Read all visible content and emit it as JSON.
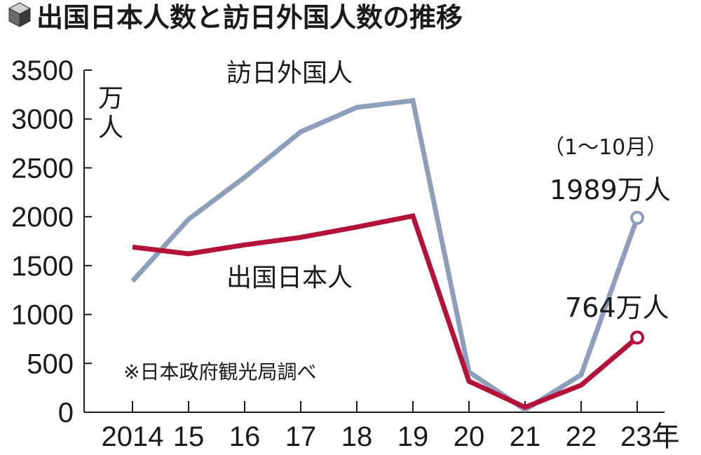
{
  "title": "出国日本人数と訪日外国人数の推移",
  "title_icon": "cube-icon",
  "unit": "万人",
  "source_note": "※日本政府観光局調べ",
  "annotations": {
    "period": "（1〜10月）",
    "foreign_latest": "1989万人",
    "japanese_latest": "764万人"
  },
  "chart_data": {
    "type": "line",
    "title": "出国日本人数と訪日外国人数の推移",
    "ylabel": "万人",
    "xlabel": "",
    "x": [
      "2014",
      "15",
      "16",
      "17",
      "18",
      "19",
      "20",
      "21",
      "22",
      "23"
    ],
    "x_suffix_last": "年",
    "ylim": [
      0,
      3500
    ],
    "yticks": [
      0,
      500,
      1000,
      1500,
      2000,
      2500,
      3000,
      3500
    ],
    "grid": false,
    "series": [
      {
        "name": "訪日外国人",
        "color": "#8e9fbb",
        "values": [
          1341,
          1974,
          2404,
          2869,
          3119,
          3188,
          412,
          25,
          383,
          1989
        ]
      },
      {
        "name": "出国日本人",
        "color": "#b5123a",
        "values": [
          1690,
          1621,
          1712,
          1789,
          1895,
          2008,
          317,
          51,
          277,
          764
        ]
      }
    ]
  }
}
